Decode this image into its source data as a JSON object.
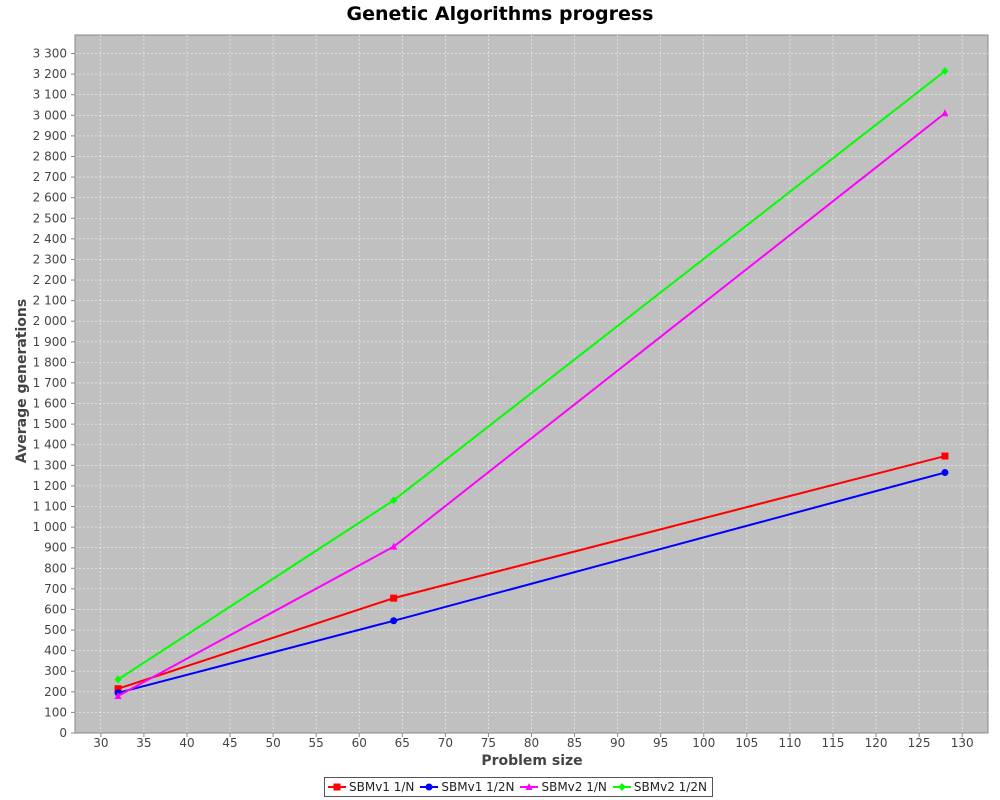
{
  "chart_data": {
    "type": "line",
    "title": "Genetic Algorithms progress",
    "xlabel": "Problem size",
    "ylabel": "Average generations",
    "xlim": [
      27,
      133
    ],
    "ylim": [
      0,
      3390
    ],
    "x_ticks": [
      30,
      35,
      40,
      45,
      50,
      55,
      60,
      65,
      70,
      75,
      80,
      85,
      90,
      95,
      100,
      105,
      110,
      115,
      120,
      125,
      130
    ],
    "y_ticks": [
      0,
      100,
      200,
      300,
      400,
      500,
      600,
      700,
      800,
      900,
      1000,
      1100,
      1200,
      1300,
      1400,
      1500,
      1600,
      1700,
      1800,
      1900,
      2000,
      2100,
      2200,
      2300,
      2400,
      2500,
      2600,
      2700,
      2800,
      2900,
      3000,
      3100,
      3200,
      3300
    ],
    "y_tick_labels": [
      "0",
      "100",
      "200",
      "300",
      "400",
      "500",
      "600",
      "700",
      "800",
      "900",
      "1 000",
      "1 100",
      "1 200",
      "1 300",
      "1 400",
      "1 500",
      "1 600",
      "1 700",
      "1 800",
      "1 900",
      "2 000",
      "2 100",
      "2 200",
      "2 300",
      "2 400",
      "2 500",
      "2 600",
      "2 700",
      "2 800",
      "2 900",
      "3 000",
      "3 100",
      "3 200",
      "3 300"
    ],
    "grid": true,
    "legend_position": "bottom",
    "background_color": "#c0c0c0",
    "x": [
      32,
      64,
      128
    ],
    "series": [
      {
        "name": "SBMv1 1/N",
        "color": "#ff0000",
        "marker": "square",
        "values": [
          215,
          655,
          1345
        ]
      },
      {
        "name": "SBMv1 1/2N",
        "color": "#0000ff",
        "marker": "circle",
        "values": [
          195,
          545,
          1265
        ]
      },
      {
        "name": "SBMv2 1/N",
        "color": "#ff00ff",
        "marker": "triangle",
        "values": [
          180,
          905,
          3010
        ]
      },
      {
        "name": "SBMv2 1/2N",
        "color": "#00ff00",
        "marker": "diamond",
        "values": [
          260,
          1130,
          3215
        ]
      }
    ]
  }
}
